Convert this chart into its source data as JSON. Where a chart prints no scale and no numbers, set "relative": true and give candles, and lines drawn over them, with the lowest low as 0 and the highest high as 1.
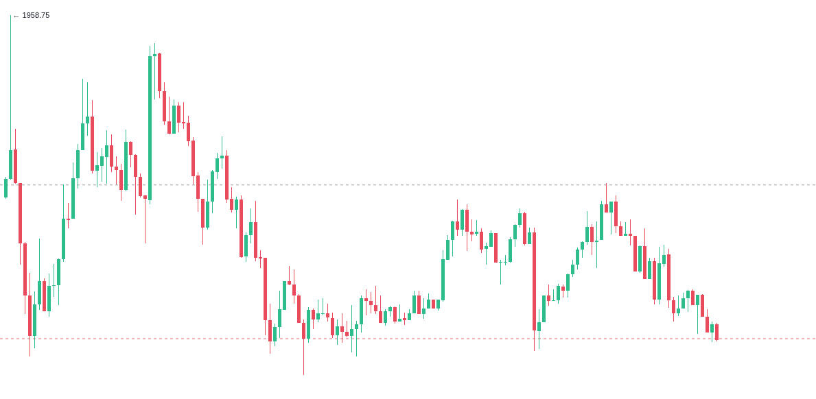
{
  "chart_data": {
    "type": "candlestick",
    "relative": true,
    "categories": [
      null,
      null,
      null,
      null,
      null,
      null,
      null,
      null,
      null,
      null,
      null,
      null,
      null,
      null,
      null,
      null,
      null,
      null,
      null,
      null,
      null,
      null,
      null,
      null,
      null,
      null,
      null,
      null,
      null,
      null,
      null,
      null,
      null,
      null,
      null,
      null,
      null,
      null,
      null,
      null,
      null,
      null,
      null,
      null,
      null,
      null,
      null,
      null,
      null,
      null,
      null,
      null,
      null,
      null,
      null,
      null,
      null,
      null,
      null,
      null,
      null,
      null,
      null,
      null,
      null,
      null,
      null,
      null,
      null,
      null,
      null,
      null,
      null,
      null,
      null,
      null,
      null,
      null,
      null,
      null,
      null,
      null,
      null,
      null,
      null,
      null,
      null,
      null,
      null,
      null,
      null,
      null,
      null,
      null,
      null,
      null,
      null,
      null,
      null,
      null,
      null,
      null,
      null,
      null,
      null,
      null,
      null,
      null,
      null,
      null,
      null,
      null,
      null,
      null,
      null,
      null,
      null,
      null,
      null,
      null,
      null,
      null,
      null,
      null,
      null,
      null,
      null,
      null,
      null,
      null,
      null,
      null,
      null,
      null,
      null,
      null,
      null,
      null,
      null,
      null,
      null,
      null,
      null,
      null,
      null,
      null,
      null,
      null,
      null
    ],
    "ohlc": [
      [
        0.493,
        0.55,
        0.49,
        0.545
      ],
      [
        0.545,
        1,
        0.543,
        0.625
      ],
      [
        0.627,
        0.684,
        0.531,
        0.533
      ],
      [
        0.533,
        0.533,
        0.307,
        0.366
      ],
      [
        0.366,
        0.37,
        0.17,
        0.221
      ],
      [
        0.221,
        0.284,
        0.051,
        0.109
      ],
      [
        0.109,
        0.232,
        0.074,
        0.196
      ],
      [
        0.196,
        0.379,
        0.181,
        0.261
      ],
      [
        0.261,
        0.269,
        0.177,
        0.177
      ],
      [
        0.177,
        0.282,
        0.162,
        0.248
      ],
      [
        0.248,
        0.309,
        0.217,
        0.25
      ],
      [
        0.25,
        0.324,
        0.194,
        0.322
      ],
      [
        0.322,
        0.53,
        0.314,
        0.434
      ],
      [
        0.434,
        0.478,
        0.408,
        0.43
      ],
      [
        0.434,
        0.59,
        0.434,
        0.547
      ],
      [
        0.547,
        0.642,
        0.518,
        0.625
      ],
      [
        0.625,
        0.823,
        0.625,
        0.699
      ],
      [
        0.699,
        0.813,
        0.665,
        0.718
      ],
      [
        0.718,
        0.764,
        0.56,
        0.568
      ],
      [
        0.568,
        0.619,
        0.522,
        0.583
      ],
      [
        0.581,
        0.63,
        0.537,
        0.608
      ],
      [
        0.606,
        0.68,
        0.531,
        0.638
      ],
      [
        0.638,
        0.669,
        0.564,
        0.579
      ],
      [
        0.579,
        0.608,
        0.53,
        0.57
      ],
      [
        0.57,
        0.587,
        0.484,
        0.514
      ],
      [
        0.514,
        0.682,
        0.51,
        0.648
      ],
      [
        0.648,
        0.65,
        0.577,
        0.611
      ],
      [
        0.611,
        0.613,
        0.446,
        0.55
      ],
      [
        0.55,
        0.56,
        0.493,
        0.497
      ],
      [
        0.499,
        0.499,
        0.366,
        0.49
      ],
      [
        0.486,
        0.914,
        0.474,
        0.886
      ],
      [
        0.886,
        0.922,
        0.766,
        0.891
      ],
      [
        0.893,
        0.895,
        0.77,
        0.789
      ],
      [
        0.789,
        0.813,
        0.695,
        0.705
      ],
      [
        0.705,
        0.773,
        0.669,
        0.67
      ],
      [
        0.67,
        0.766,
        0.67,
        0.749
      ],
      [
        0.749,
        0.758,
        0.674,
        0.701
      ],
      [
        0.703,
        0.758,
        0.684,
        0.699
      ],
      [
        0.701,
        0.72,
        0.636,
        0.65
      ],
      [
        0.651,
        0.661,
        0.53,
        0.552
      ],
      [
        0.554,
        0.564,
        0.453,
        0.49
      ],
      [
        0.49,
        0.49,
        0.362,
        0.41
      ],
      [
        0.41,
        0.543,
        0.404,
        0.482
      ],
      [
        0.482,
        0.57,
        0.45,
        0.566
      ],
      [
        0.564,
        0.617,
        0.545,
        0.602
      ],
      [
        0.602,
        0.663,
        0.573,
        0.61
      ],
      [
        0.61,
        0.625,
        0.478,
        0.488
      ],
      [
        0.49,
        0.522,
        0.451,
        0.459
      ],
      [
        0.459,
        0.495,
        0.408,
        0.488
      ],
      [
        0.488,
        0.499,
        0.326,
        0.328
      ],
      [
        0.33,
        0.396,
        0.314,
        0.389
      ],
      [
        0.389,
        0.463,
        0.366,
        0.425
      ],
      [
        0.425,
        0.484,
        0.316,
        0.326
      ],
      [
        0.328,
        0.347,
        0.297,
        0.324
      ],
      [
        0.326,
        0.326,
        0.11,
        0.152
      ],
      [
        0.152,
        0.198,
        0.059,
        0.093
      ],
      [
        0.093,
        0.143,
        0.08,
        0.133
      ],
      [
        0.133,
        0.234,
        0.103,
        0.183
      ],
      [
        0.181,
        0.261,
        0.181,
        0.261
      ],
      [
        0.261,
        0.303,
        0.25,
        0.251
      ],
      [
        0.251,
        0.293,
        0.198,
        0.221
      ],
      [
        0.221,
        0.225,
        0.145,
        0.145
      ],
      [
        0.145,
        0.154,
        0,
        0.101
      ],
      [
        0.101,
        0.189,
        0.09,
        0.181
      ],
      [
        0.181,
        0.185,
        0.128,
        0.154
      ],
      [
        0.154,
        0.21,
        0.147,
        0.171
      ],
      [
        0.17,
        0.213,
        0.166,
        0.171
      ],
      [
        0.171,
        0.198,
        0.149,
        0.16
      ],
      [
        0.158,
        0.173,
        0.103,
        0.11
      ],
      [
        0.11,
        0.154,
        0.084,
        0.135
      ],
      [
        0.135,
        0.171,
        0.09,
        0.12
      ],
      [
        0.12,
        0.15,
        0.105,
        0.109
      ],
      [
        0.109,
        0.194,
        0.063,
        0.128
      ],
      [
        0.128,
        0.15,
        0.051,
        0.141
      ],
      [
        0.141,
        0.221,
        0.118,
        0.213
      ],
      [
        0.213,
        0.238,
        0.166,
        0.206
      ],
      [
        0.206,
        0.23,
        0.171,
        0.194
      ],
      [
        0.194,
        0.248,
        0.17,
        0.177
      ],
      [
        0.177,
        0.221,
        0.145,
        0.145
      ],
      [
        0.145,
        0.183,
        0.137,
        0.177
      ],
      [
        0.177,
        0.192,
        0.162,
        0.189
      ],
      [
        0.189,
        0.19,
        0.143,
        0.149
      ],
      [
        0.149,
        0.196,
        0.149,
        0.156
      ],
      [
        0.158,
        0.173,
        0.139,
        0.152
      ],
      [
        0.152,
        0.183,
        0.152,
        0.171
      ],
      [
        0.171,
        0.234,
        0.171,
        0.221
      ],
      [
        0.221,
        0.234,
        0.17,
        0.17
      ],
      [
        0.17,
        0.213,
        0.156,
        0.185
      ],
      [
        0.185,
        0.227,
        0.185,
        0.21
      ],
      [
        0.21,
        0.21,
        0.185,
        0.185
      ],
      [
        0.185,
        0.21,
        0.179,
        0.21
      ],
      [
        0.208,
        0.347,
        0.204,
        0.322
      ],
      [
        0.32,
        0.389,
        0.32,
        0.375
      ],
      [
        0.375,
        0.429,
        0.33,
        0.427
      ],
      [
        0.427,
        0.488,
        0.387,
        0.404
      ],
      [
        0.404,
        0.461,
        0.387,
        0.459
      ],
      [
        0.459,
        0.474,
        0.345,
        0.398
      ],
      [
        0.398,
        0.432,
        0.371,
        0.39
      ],
      [
        0.392,
        0.43,
        0.387,
        0.398
      ],
      [
        0.398,
        0.408,
        0.339,
        0.349
      ],
      [
        0.35,
        0.368,
        0.307,
        0.358
      ],
      [
        0.356,
        0.402,
        0.356,
        0.394
      ],
      [
        0.394,
        0.394,
        0.312,
        0.312
      ],
      [
        0.312,
        0.32,
        0.251,
        0.314
      ],
      [
        0.312,
        0.333,
        0.305,
        0.314
      ],
      [
        0.314,
        0.383,
        0.312,
        0.377
      ],
      [
        0.377,
        0.419,
        0.356,
        0.417
      ],
      [
        0.417,
        0.463,
        0.41,
        0.45
      ],
      [
        0.45,
        0.453,
        0.36,
        0.364
      ],
      [
        0.364,
        0.41,
        0.364,
        0.396
      ],
      [
        0.396,
        0.41,
        0.067,
        0.124
      ],
      [
        0.122,
        0.183,
        0.072,
        0.147
      ],
      [
        0.147,
        0.221,
        0.147,
        0.221
      ],
      [
        0.221,
        0.251,
        0.192,
        0.206
      ],
      [
        0.206,
        0.238,
        0.206,
        0.208
      ],
      [
        0.208,
        0.253,
        0.198,
        0.248
      ],
      [
        0.246,
        0.251,
        0.215,
        0.234
      ],
      [
        0.234,
        0.282,
        0.215,
        0.28
      ],
      [
        0.28,
        0.32,
        0.272,
        0.307
      ],
      [
        0.307,
        0.354,
        0.293,
        0.349
      ],
      [
        0.349,
        0.371,
        0.326,
        0.37
      ],
      [
        0.37,
        0.455,
        0.362,
        0.411
      ],
      [
        0.411,
        0.419,
        0.333,
        0.37
      ],
      [
        0.37,
        0.427,
        0.297,
        0.373
      ],
      [
        0.375,
        0.484,
        0.375,
        0.474
      ],
      [
        0.474,
        0.533,
        0.451,
        0.451
      ],
      [
        0.451,
        0.482,
        0.39,
        0.482
      ],
      [
        0.482,
        0.499,
        0.394,
        0.413
      ],
      [
        0.413,
        0.427,
        0.387,
        0.387
      ],
      [
        0.387,
        0.425,
        0.387,
        0.392
      ],
      [
        0.392,
        0.432,
        0.36,
        0.387
      ],
      [
        0.387,
        0.387,
        0.288,
        0.288
      ],
      [
        0.288,
        0.36,
        0.284,
        0.358
      ],
      [
        0.358,
        0.408,
        0.267,
        0.267
      ],
      [
        0.267,
        0.326,
        0.267,
        0.316
      ],
      [
        0.316,
        0.326,
        0.196,
        0.21
      ],
      [
        0.21,
        0.356,
        0.196,
        0.31
      ],
      [
        0.309,
        0.362,
        0.301,
        0.333
      ],
      [
        0.335,
        0.35,
        0.187,
        0.208
      ],
      [
        0.208,
        0.217,
        0.149,
        0.171
      ],
      [
        0.171,
        0.221,
        0.164,
        0.185
      ],
      [
        0.185,
        0.229,
        0.185,
        0.213
      ],
      [
        0.213,
        0.236,
        0.175,
        0.234
      ],
      [
        0.234,
        0.238,
        0.194,
        0.194
      ],
      [
        0.194,
        0.223,
        0.114,
        0.223
      ],
      [
        0.223,
        0.225,
        0.162,
        0.162
      ],
      [
        0.162,
        0.183,
        0.118,
        0.118
      ],
      [
        0.118,
        0.149,
        0.091,
        0.141
      ],
      [
        0.141,
        0.145,
        0.093,
        0.097
      ]
    ],
    "colors": [
      "#2dbd8b",
      "#2dbd8b",
      "#e84c5c",
      "#e84c5c",
      "#e84c5c",
      "#e84c5c",
      "#2dbd8b",
      "#2dbd8b",
      "#e84c5c",
      "#2dbd8b",
      "#2dbd8b",
      "#2dbd8b",
      "#2dbd8b",
      "#e84c5c",
      "#2dbd8b",
      "#2dbd8b",
      "#2dbd8b",
      "#2dbd8b",
      "#e84c5c",
      "#2dbd8b",
      "#2dbd8b",
      "#2dbd8b",
      "#e84c5c",
      "#e84c5c",
      "#e84c5c",
      "#2dbd8b",
      "#e84c5c",
      "#e84c5c",
      "#e84c5c",
      "#e84c5c",
      "#2dbd8b",
      "#2dbd8b",
      "#e84c5c",
      "#e84c5c",
      "#e84c5c",
      "#2dbd8b",
      "#e84c5c",
      "#e84c5c",
      "#e84c5c",
      "#e84c5c",
      "#e84c5c",
      "#e84c5c",
      "#2dbd8b",
      "#2dbd8b",
      "#2dbd8b",
      "#2dbd8b",
      "#e84c5c",
      "#e84c5c",
      "#2dbd8b",
      "#e84c5c",
      "#2dbd8b",
      "#2dbd8b",
      "#e84c5c",
      "#e84c5c",
      "#e84c5c",
      "#e84c5c",
      "#2dbd8b",
      "#2dbd8b",
      "#2dbd8b",
      "#e84c5c",
      "#e84c5c",
      "#e84c5c",
      "#e84c5c",
      "#2dbd8b",
      "#e84c5c",
      "#2dbd8b",
      "#2dbd8b",
      "#e84c5c",
      "#e84c5c",
      "#2dbd8b",
      "#e84c5c",
      "#e84c5c",
      "#2dbd8b",
      "#2dbd8b",
      "#2dbd8b",
      "#e84c5c",
      "#e84c5c",
      "#e84c5c",
      "#e84c5c",
      "#2dbd8b",
      "#2dbd8b",
      "#e84c5c",
      "#2dbd8b",
      "#e84c5c",
      "#2dbd8b",
      "#2dbd8b",
      "#e84c5c",
      "#2dbd8b",
      "#2dbd8b",
      "#e84c5c",
      "#2dbd8b",
      "#2dbd8b",
      "#2dbd8b",
      "#2dbd8b",
      "#e84c5c",
      "#2dbd8b",
      "#e84c5c",
      "#e84c5c",
      "#2dbd8b",
      "#e84c5c",
      "#2dbd8b",
      "#2dbd8b",
      "#e84c5c",
      "#2dbd8b",
      "#2dbd8b",
      "#2dbd8b",
      "#2dbd8b",
      "#2dbd8b",
      "#e84c5c",
      "#2dbd8b",
      "#e84c5c",
      "#2dbd8b",
      "#2dbd8b",
      "#e84c5c",
      "#2dbd8b",
      "#2dbd8b",
      "#e84c5c",
      "#2dbd8b",
      "#2dbd8b",
      "#2dbd8b",
      "#2dbd8b",
      "#2dbd8b",
      "#e84c5c",
      "#2dbd8b",
      "#2dbd8b",
      "#e84c5c",
      "#2dbd8b",
      "#e84c5c",
      "#e84c5c",
      "#2dbd8b",
      "#e84c5c",
      "#e84c5c",
      "#2dbd8b",
      "#e84c5c",
      "#2dbd8b",
      "#e84c5c",
      "#2dbd8b",
      "#2dbd8b",
      "#e84c5c",
      "#e84c5c",
      "#2dbd8b",
      "#2dbd8b",
      "#2dbd8b",
      "#e84c5c",
      "#2dbd8b",
      "#e84c5c",
      "#e84c5c",
      "#2dbd8b",
      "#e84c5c"
    ],
    "ref_lines": [
      {
        "axis": "y",
        "value": 0.528,
        "color": "#9e9e9e",
        "line_style": "dashed"
      },
      {
        "axis": "y",
        "value": 0.101,
        "color": "#e0707c",
        "line_style": "dashed"
      }
    ],
    "annotations": [
      "← 1958.75"
    ]
  }
}
